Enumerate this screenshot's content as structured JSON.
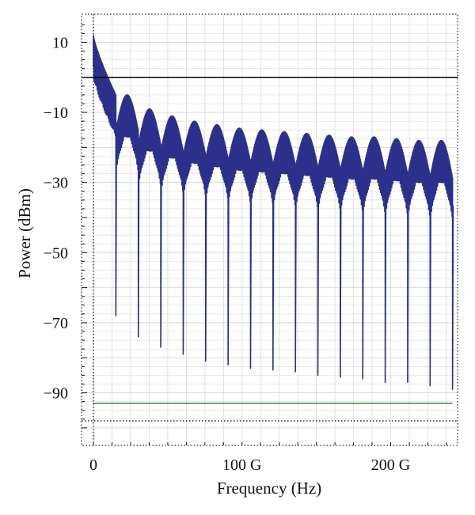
{
  "chart_data": {
    "type": "line",
    "title": "",
    "xlabel": "Frequency (Hz)",
    "ylabel": "Power (dBm)",
    "x_ticks": [
      {
        "value": 0,
        "label": "0"
      },
      {
        "value": 100,
        "label": "100 G"
      },
      {
        "value": 200,
        "label": "200 G"
      }
    ],
    "y_ticks": [
      {
        "value": 10,
        "label": "10"
      },
      {
        "value": -10,
        "label": "−10"
      },
      {
        "value": -30,
        "label": "−30"
      },
      {
        "value": -50,
        "label": "−50"
      },
      {
        "value": -70,
        "label": "−70"
      },
      {
        "value": -90,
        "label": "−90"
      }
    ],
    "xlim": [
      -8,
      245
    ],
    "ylim": [
      -105,
      18
    ],
    "grid": true,
    "legend": "none",
    "series": [
      {
        "color": "#2b318a",
        "fundamental_hz": "15.1 G",
        "lobes": [
          {
            "x_start": 0,
            "x_end": 15.1,
            "peak": 12,
            "trough": -5,
            "null": -68
          },
          {
            "x_start": 15.1,
            "x_end": 30.2,
            "peak": -5,
            "trough": -15,
            "null": -74
          },
          {
            "x_start": 30.2,
            "x_end": 45.3,
            "peak": -9,
            "trough": -19,
            "null": -77
          },
          {
            "x_start": 45.3,
            "x_end": 60.4,
            "peak": -11,
            "trough": -21,
            "null": -79
          },
          {
            "x_start": 60.4,
            "x_end": 75.5,
            "peak": -12.5,
            "trough": -22,
            "null": -81
          },
          {
            "x_start": 75.5,
            "x_end": 90.6,
            "peak": -13.5,
            "trough": -23,
            "null": -82
          },
          {
            "x_start": 90.6,
            "x_end": 105.7,
            "peak": -14.5,
            "trough": -24,
            "null": -83
          },
          {
            "x_start": 105.7,
            "x_end": 120.8,
            "peak": -15,
            "trough": -24.5,
            "null": -83.5
          },
          {
            "x_start": 120.8,
            "x_end": 135.9,
            "peak": -15.5,
            "trough": -25,
            "null": -84
          },
          {
            "x_start": 135.9,
            "x_end": 151.0,
            "peak": -16,
            "trough": -25.5,
            "null": -85
          },
          {
            "x_start": 151.0,
            "x_end": 166.1,
            "peak": -16.5,
            "trough": -26,
            "null": -85.5
          },
          {
            "x_start": 166.1,
            "x_end": 181.2,
            "peak": -17,
            "trough": -26.5,
            "null": -86
          },
          {
            "x_start": 181.2,
            "x_end": 196.3,
            "peak": -17,
            "trough": -27,
            "null": -87
          },
          {
            "x_start": 196.3,
            "x_end": 211.4,
            "peak": -17.5,
            "trough": -27.5,
            "null": -87
          },
          {
            "x_start": 211.4,
            "x_end": 226.5,
            "peak": -18,
            "trough": -28,
            "null": -88
          },
          {
            "x_start": 226.5,
            "x_end": 241.6,
            "peak": -18,
            "trough": -28.5,
            "null": -89
          }
        ]
      },
      {
        "color": "#3a9a3a",
        "x": [
          0,
          241.6
        ],
        "y": [
          -93,
          -93
        ]
      }
    ],
    "reference_lines": [
      {
        "orientation": "horizontal",
        "value": 0,
        "style": "solid",
        "color": "#000000"
      },
      {
        "orientation": "horizontal",
        "value": -98,
        "style": "dotted",
        "color": "#000000"
      },
      {
        "orientation": "vertical",
        "value": 0,
        "style": "dotted",
        "color": "#000000"
      }
    ],
    "colors": {
      "trace": "#2b318a",
      "noise_floor": "#3a9a3a",
      "grid": "#d9d9d9"
    }
  }
}
